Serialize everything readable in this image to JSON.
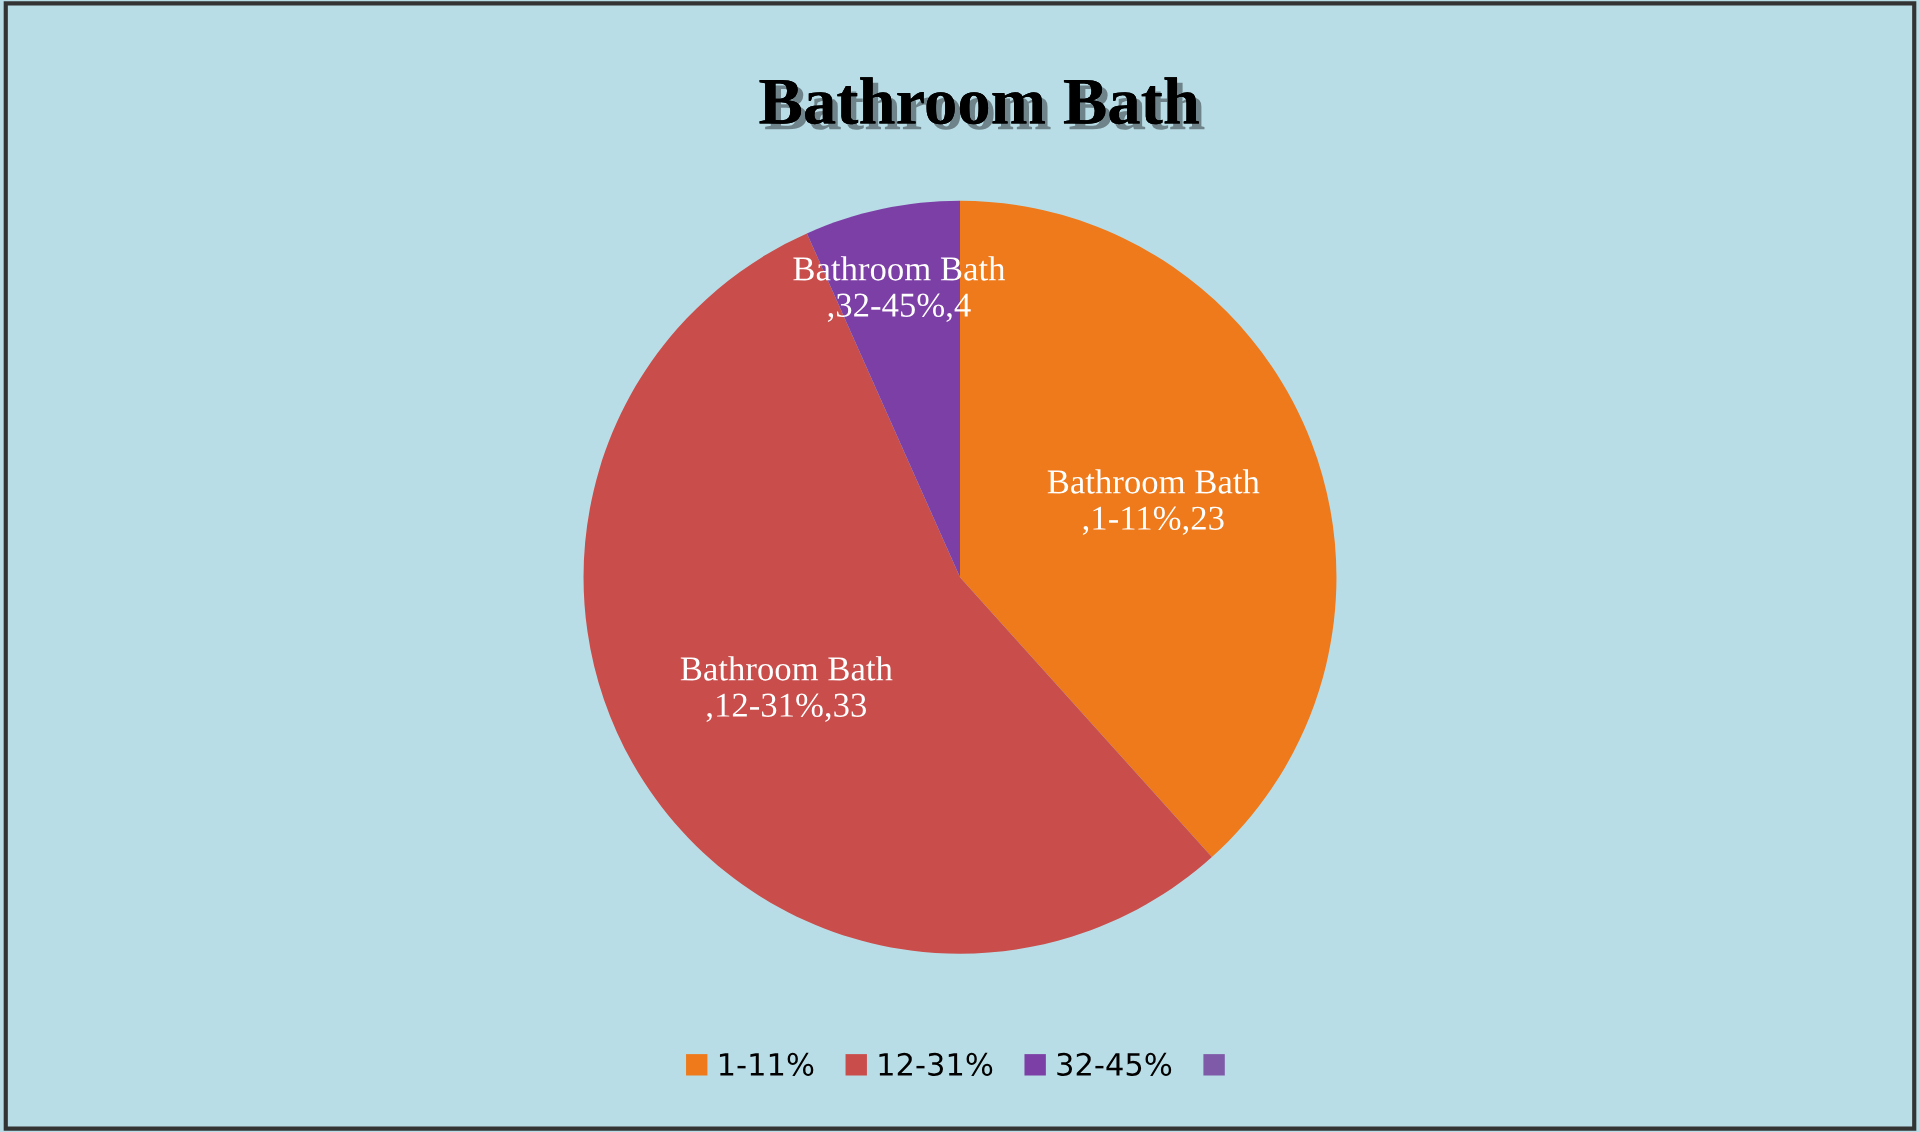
{
  "chart_data": {
    "type": "pie",
    "title": "Bathroom Bath",
    "categories": [
      "1-11%",
      "12-31%",
      "32-45%",
      null
    ],
    "values": [
      23,
      33,
      4,
      null
    ],
    "colors": [
      "#ee7a1c",
      "#c94d4b",
      "#7c3fa6",
      "#7f5aa8"
    ],
    "value_labels": [
      "Bathroom Bath\n,1-11%,23",
      "Bathroom Bath\n,12-31%,33",
      "Bathroom Bath\n,32-45%,4",
      null
    ],
    "legend": "bottom"
  }
}
